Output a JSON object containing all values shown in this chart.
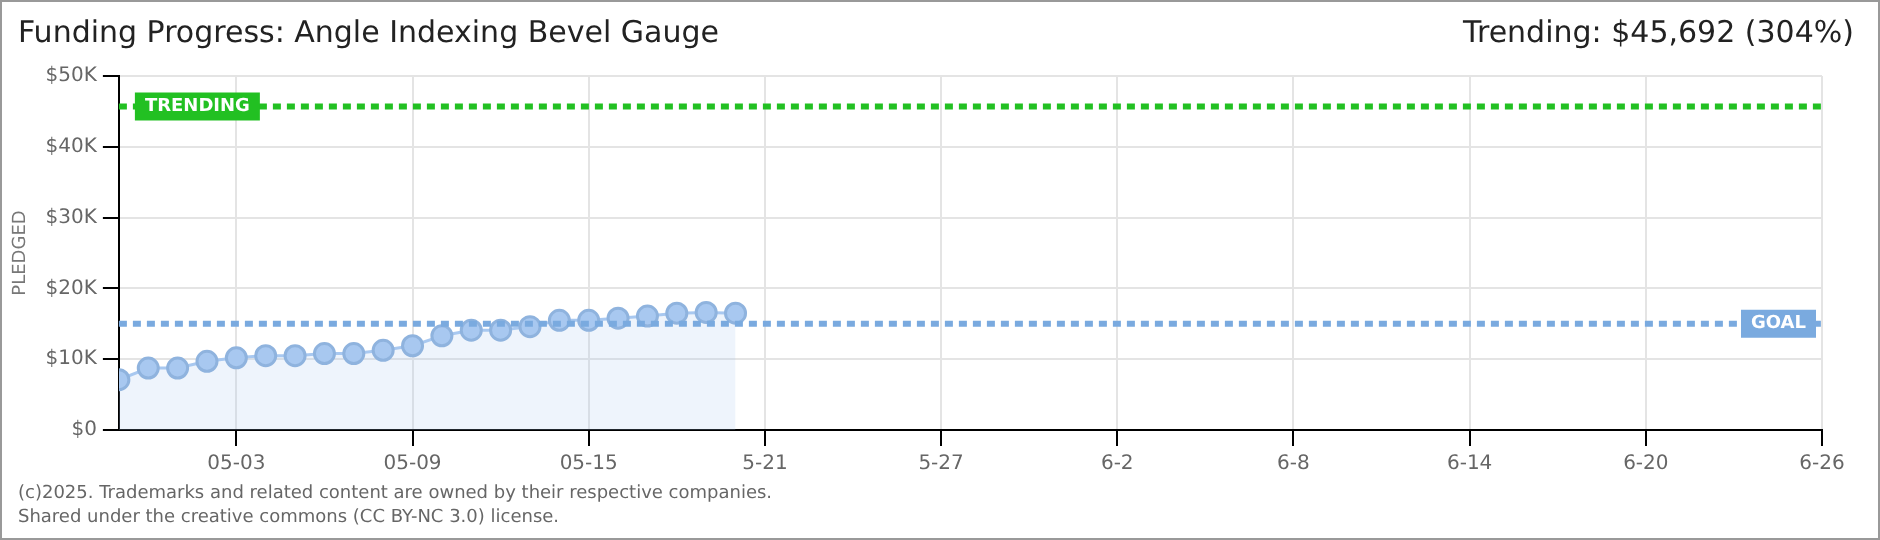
{
  "chart_data": {
    "type": "area",
    "title": "Funding Progress: Angle Indexing Bevel Gauge",
    "subtitle": "Trending: $45,692 (304%)",
    "ylabel": "PLEDGED",
    "x": [
      "--04-29",
      "--04-30",
      "--05-01",
      "--05-02",
      "--05-03",
      "--05-04",
      "--05-05",
      "--05-06",
      "--05-07",
      "--05-08",
      "--05-09",
      "--05-10",
      "--05-11",
      "--05-12",
      "--05-13",
      "--05-14",
      "--05-15",
      "--05-16",
      "--05-17",
      "--05-18",
      "--05-19",
      "--05-20"
    ],
    "series": [
      {
        "color": "#a8c8f0",
        "values": [
          7100,
          8750,
          8750,
          9700,
          10200,
          10500,
          10500,
          10800,
          10800,
          11250,
          11900,
          13300,
          14100,
          14100,
          14600,
          15500,
          15500,
          15800,
          16100,
          16500,
          16600,
          16500
        ]
      }
    ],
    "xlim": [
      "--04-29",
      "--06-26"
    ],
    "xticks": [
      {
        "value": "--05-03",
        "label": "05-03"
      },
      {
        "value": "--05-09",
        "label": "05-09"
      },
      {
        "value": "--05-15",
        "label": "05-15"
      },
      {
        "value": "--05-21",
        "label": "5-21"
      },
      {
        "value": "--05-27",
        "label": "5-27"
      },
      {
        "value": "--06-02",
        "label": "6-2"
      },
      {
        "value": "--06-08",
        "label": "6-8"
      },
      {
        "value": "--06-14",
        "label": "6-14"
      },
      {
        "value": "--06-20",
        "label": "6-20"
      },
      {
        "value": "--06-26",
        "label": "6-26"
      }
    ],
    "ylim": [
      0,
      50000
    ],
    "yticks": [
      {
        "value": 0,
        "label": "$0"
      },
      {
        "value": 10000,
        "label": "$10K"
      },
      {
        "value": 20000,
        "label": "$20K"
      },
      {
        "value": 30000,
        "label": "$30K"
      },
      {
        "value": 40000,
        "label": "$40K"
      },
      {
        "value": 50000,
        "label": "$50K"
      }
    ],
    "ref_lines": [
      {
        "axis": "y",
        "value": 45692,
        "label": "TRENDING",
        "color": "#22c022",
        "line_style": "dashed"
      },
      {
        "axis": "y",
        "value": 15000,
        "label": "GOAL",
        "color": "#7aaadf",
        "line_style": "dashed"
      }
    ],
    "grid": true,
    "marker": "circle",
    "legend": false,
    "annotations": [
      "(c)2025. Trademarks and related content are owned by their respective companies.",
      "Shared under the creative commons (CC BY-NC 3.0) license."
    ]
  }
}
